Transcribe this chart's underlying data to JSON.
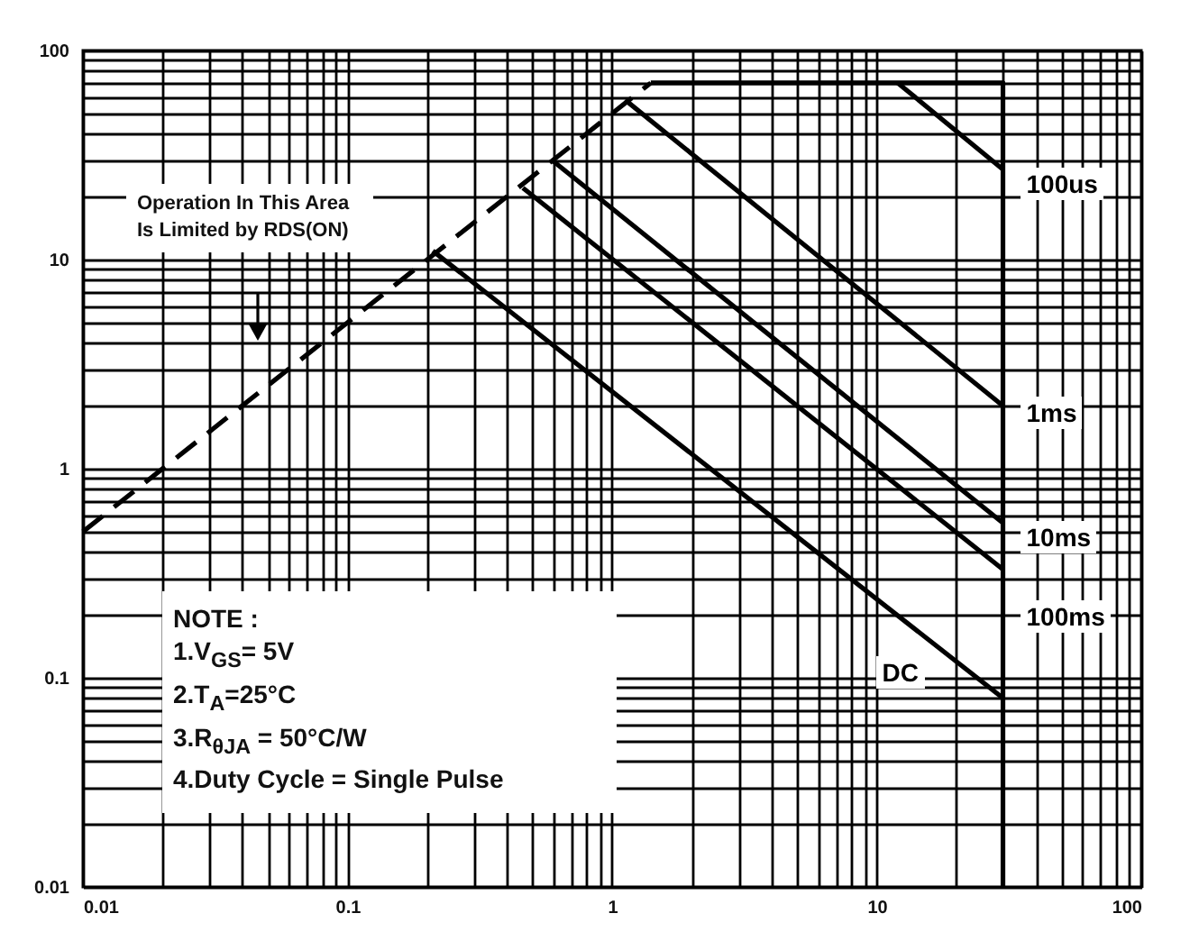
{
  "chart_data": {
    "type": "line",
    "log": "xy",
    "grid": true,
    "xlim": [
      0.01,
      100
    ],
    "ylim": [
      0.01,
      100
    ],
    "xticks": [
      0.01,
      {
        "value": 0.02,
        "label": null
      },
      {
        "value": 0.03,
        "label": null
      },
      {
        "value": 0.04,
        "label": null
      },
      {
        "value": 0.05,
        "label": null
      },
      {
        "value": 0.06,
        "label": null
      },
      {
        "value": 0.07,
        "label": null
      },
      {
        "value": 0.08,
        "label": null
      },
      {
        "value": 0.09,
        "label": null
      },
      0.1,
      {
        "value": 0.2,
        "label": null
      },
      {
        "value": 0.3,
        "label": null
      },
      {
        "value": 0.4,
        "label": null
      },
      {
        "value": 0.5,
        "label": null
      },
      {
        "value": 0.6,
        "label": null
      },
      {
        "value": 0.7,
        "label": null
      },
      {
        "value": 0.8,
        "label": null
      },
      {
        "value": 0.9,
        "label": null
      },
      1,
      {
        "value": 2,
        "label": null
      },
      {
        "value": 3,
        "label": null
      },
      {
        "value": 4,
        "label": null
      },
      {
        "value": 5,
        "label": null
      },
      {
        "value": 6,
        "label": null
      },
      {
        "value": 7,
        "label": null
      },
      {
        "value": 8,
        "label": null
      },
      {
        "value": 9,
        "label": null
      },
      10,
      {
        "value": 20,
        "label": null
      },
      {
        "value": 30,
        "label": null
      },
      {
        "value": 40,
        "label": null
      },
      {
        "value": 50,
        "label": null
      },
      {
        "value": 60,
        "label": null
      },
      {
        "value": 70,
        "label": null
      },
      {
        "value": 80,
        "label": null
      },
      {
        "value": 90,
        "label": null
      },
      100
    ],
    "yticks": [
      0.01,
      {
        "value": 0.02,
        "label": null
      },
      {
        "value": 0.03,
        "label": null
      },
      {
        "value": 0.04,
        "label": null
      },
      {
        "value": 0.05,
        "label": null
      },
      {
        "value": 0.06,
        "label": null
      },
      {
        "value": 0.07,
        "label": null
      },
      {
        "value": 0.08,
        "label": null
      },
      {
        "value": 0.09,
        "label": null
      },
      0.1,
      {
        "value": 0.2,
        "label": null
      },
      {
        "value": 0.3,
        "label": null
      },
      {
        "value": 0.4,
        "label": null
      },
      {
        "value": 0.5,
        "label": null
      },
      {
        "value": 0.6,
        "label": null
      },
      {
        "value": 0.7,
        "label": null
      },
      {
        "value": 0.8,
        "label": null
      },
      {
        "value": 0.9,
        "label": null
      },
      1,
      {
        "value": 2,
        "label": null
      },
      {
        "value": 3,
        "label": null
      },
      {
        "value": 4,
        "label": null
      },
      {
        "value": 5,
        "label": null
      },
      {
        "value": 6,
        "label": null
      },
      {
        "value": 7,
        "label": null
      },
      {
        "value": 8,
        "label": null
      },
      {
        "value": 9,
        "label": null
      },
      10,
      {
        "value": 20,
        "label": null
      },
      {
        "value": 30,
        "label": null
      },
      {
        "value": 40,
        "label": null
      },
      {
        "value": 50,
        "label": null
      },
      {
        "value": 60,
        "label": null
      },
      {
        "value": 70,
        "label": null
      },
      {
        "value": 80,
        "label": null
      },
      {
        "value": 90,
        "label": null
      },
      100
    ],
    "series": [
      {
        "color": "#000000",
        "line_style": "dashed",
        "x": [
          0.01,
          1.4
        ],
        "values": [
          0.5,
          70
        ]
      },
      {
        "color": "#000000",
        "x": [
          1.4,
          30,
          30
        ],
        "values": [
          70,
          70,
          0.01
        ]
      },
      {
        "name": "100us",
        "color": "#000000",
        "x": [
          12,
          30
        ],
        "values": [
          70,
          27
        ]
      },
      {
        "name": "1ms",
        "color": "#000000",
        "x": [
          1.12,
          30
        ],
        "values": [
          58,
          2
        ]
      },
      {
        "name": "10ms",
        "color": "#000000",
        "x": [
          0.59,
          30
        ],
        "values": [
          30,
          0.55
        ]
      },
      {
        "name": "100ms",
        "color": "#000000",
        "x": [
          0.46,
          30
        ],
        "values": [
          22,
          0.33
        ]
      },
      {
        "name": "DC",
        "color": "#000000",
        "x": [
          0.21,
          30
        ],
        "values": [
          11,
          0.08
        ]
      }
    ],
    "annotations": [
      "Operation In This Area Is Limited by RDS(ON)",
      "NOTE :",
      "1.V$_{GS}$= 5V",
      "2.T$_{A}$=25°C",
      "3.R$_{θJA}$ = 50°C/W",
      "4.Duty Cycle = Single Pulse"
    ]
  }
}
